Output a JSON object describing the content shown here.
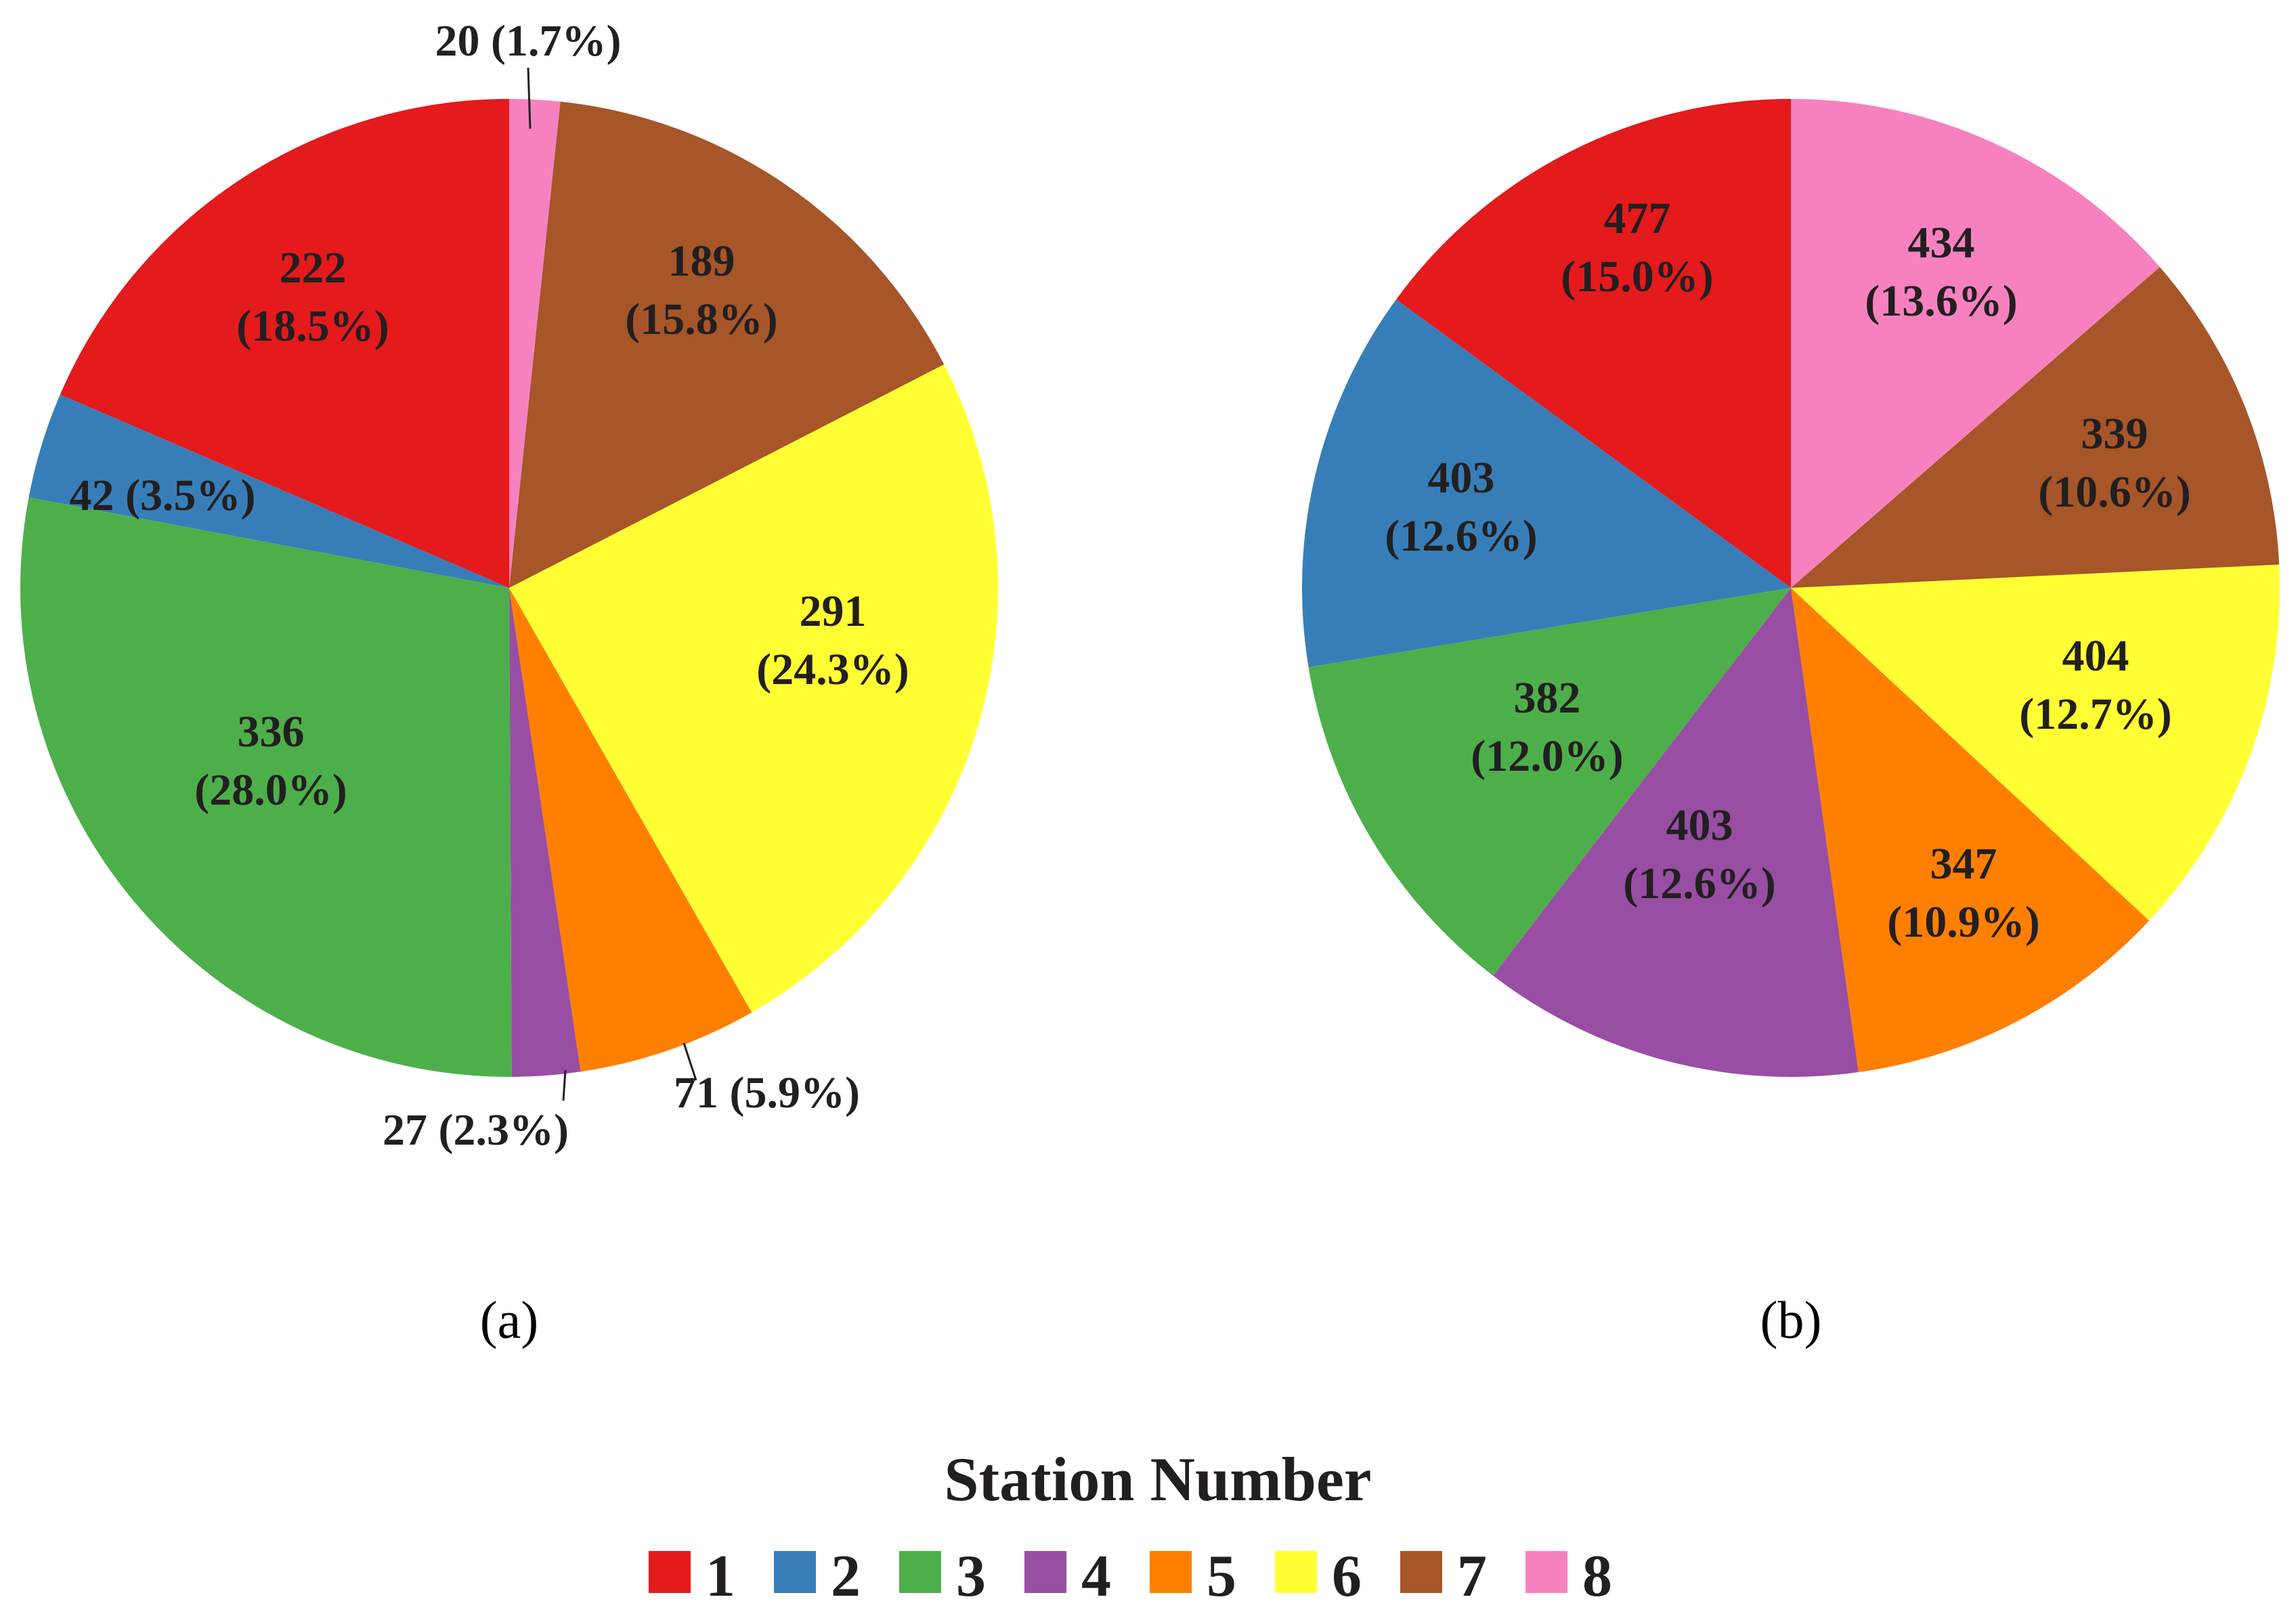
{
  "colors": [
    "#e41a1c",
    "#377eb8",
    "#4daf4a",
    "#984ea3",
    "#ff7f00",
    "#ffff33",
    "#a65628",
    "#f781bf"
  ],
  "legend": {
    "title": "Station Number",
    "items": [
      "1",
      "2",
      "3",
      "4",
      "5",
      "6",
      "7",
      "8"
    ]
  },
  "chart_data": [
    {
      "type": "pie",
      "panel": "(a)",
      "categories": [
        "1",
        "2",
        "3",
        "4",
        "5",
        "6",
        "7",
        "8"
      ],
      "values": [
        222,
        42,
        336,
        27,
        71,
        291,
        189,
        20
      ],
      "percentages": [
        "18.5%",
        "3.5%",
        "28.0%",
        "2.3%",
        "5.9%",
        "24.3%",
        "15.8%",
        "1.7%"
      ],
      "direction": "counterclockwise from top, ending with category 8",
      "labels": [
        "222\n(18.5%)",
        "42 (3.5%)",
        "336\n(28.0%)",
        "27 (2.3%)",
        "71 (5.9%)",
        "291\n(24.3%)",
        "189\n(15.8%)",
        "20 (1.7%)"
      ]
    },
    {
      "type": "pie",
      "panel": "(b)",
      "categories": [
        "1",
        "2",
        "3",
        "4",
        "5",
        "6",
        "7",
        "8"
      ],
      "values": [
        477,
        403,
        382,
        403,
        347,
        404,
        339,
        434
      ],
      "percentages": [
        "15.0%",
        "12.6%",
        "12.0%",
        "12.6%",
        "10.9%",
        "12.7%",
        "10.6%",
        "13.6%"
      ],
      "direction": "counterclockwise from top, ending with category 8",
      "labels": [
        "477\n(15.0%)",
        "403\n(12.6%)",
        "382\n(12.0%)",
        "403\n(12.6%)",
        "347\n(10.9%)",
        "404\n(12.7%)",
        "339\n(10.6%)",
        "434\n(13.6%)"
      ]
    }
  ]
}
